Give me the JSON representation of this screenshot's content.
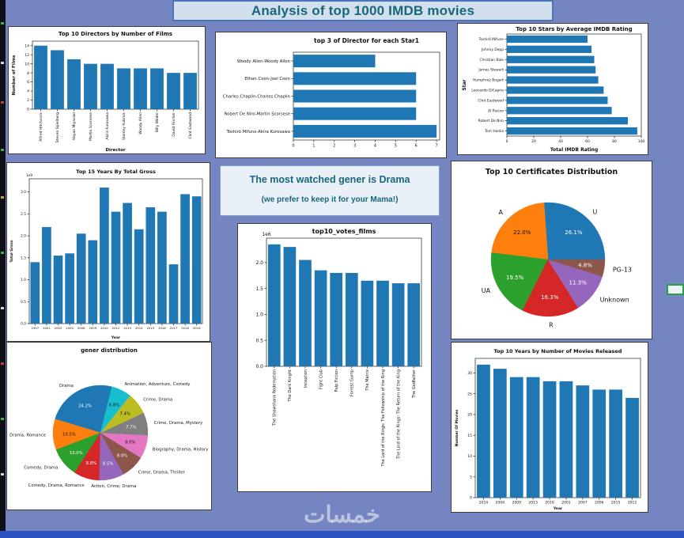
{
  "page": {
    "title": "Analysis of top 1000 IMDB movies",
    "watermark": "خمسات"
  },
  "note_box": {
    "line1": "The most watched gener is Drama",
    "line2": "(we prefer to keep it for your Mama!)"
  },
  "colors": {
    "background": "#7585c1",
    "panel": "#ffffff",
    "bar": "#1f77b4",
    "title_text": "#19677a",
    "taskbar": "#2d52c2",
    "selection_outline": "#25a244"
  },
  "chart_data": [
    {
      "id": "directors",
      "type": "bar",
      "title": "Top 10 Directors by Number of Films",
      "xlabel": "Director",
      "ylabel": "Number of Films",
      "categories": [
        "Alfred Hitchcock",
        "Steven Spielberg",
        "Hayao Miyazaki",
        "Martin Scorsese",
        "Akira Kurosawa",
        "Stanley Kubrick",
        "Woody Allen",
        "Billy Wilder",
        "David Fincher",
        "Clint Eastwood"
      ],
      "values": [
        14,
        13,
        11,
        10,
        10,
        9,
        9,
        9,
        8,
        8
      ],
      "ylim": [
        0,
        15
      ],
      "yticks": [
        "0",
        "2",
        "4",
        "6",
        "8",
        "10",
        "12",
        "14"
      ]
    },
    {
      "id": "star1",
      "type": "hbar",
      "title": "top 3 of Director for each Star1",
      "categories": [
        "Woody Allen-Woody Allen",
        "Ethan Coen-Joel Coen",
        "Charles Chaplin-Charles Chaplin",
        "Robert De Niro-Martin Scorsese",
        "Toshirô Mifune-Akira Kurosawa"
      ],
      "values": [
        4,
        6,
        6,
        6,
        7
      ],
      "xlim": [
        0,
        7.15
      ],
      "xticks": [
        "0",
        "1",
        "2",
        "3",
        "4",
        "5",
        "6",
        "7"
      ]
    },
    {
      "id": "stars",
      "type": "hbar",
      "title": "Top 10 Stars by Average IMDB Rating",
      "xlabel": "Total IMDB Rating",
      "ylabel": "Star",
      "categories": [
        "Toshirô Mifune",
        "Johnny Depp",
        "Christian Bale",
        "James Stewart",
        "Humphrey Bogart",
        "Leonardo DiCaprio",
        "Clint Eastwood",
        "Al Pacino",
        "Robert De Niro",
        "Tom Hanks"
      ],
      "values": [
        60,
        63,
        65,
        66,
        68,
        72,
        75,
        78,
        90,
        97
      ],
      "xlim": [
        0,
        100
      ],
      "xticks": [
        "0",
        "20",
        "40",
        "60",
        "80",
        "100"
      ]
    },
    {
      "id": "years_gross",
      "type": "bar",
      "title": "Top 15 Years By Total Gross",
      "xlabel": "Year",
      "ylabel": "Total Gross",
      "scale_label": "1e9",
      "categories": [
        "1997",
        "2001",
        "2003",
        "2004",
        "2008",
        "2009",
        "2010",
        "2012",
        "2013",
        "2014",
        "2015",
        "2016",
        "2017",
        "2018",
        "2019"
      ],
      "values": [
        1.4,
        2.2,
        1.55,
        1.6,
        2.05,
        1.9,
        3.1,
        2.55,
        2.75,
        2.15,
        2.65,
        2.55,
        1.35,
        2.95,
        2.9
      ],
      "ylim": [
        0,
        3.3
      ],
      "yticks": [
        "0.0",
        "0.5",
        "1.0",
        "1.5",
        "2.0",
        "2.5",
        "3.0"
      ]
    },
    {
      "id": "votes",
      "type": "bar",
      "title": "top10_votes_films",
      "scale_label": "1e6",
      "categories": [
        "The Shawshank Redemption",
        "The Dark Knight",
        "Inception",
        "Fight Club",
        "Pulp Fiction",
        "Forrest Gump",
        "The Matrix",
        "The Lord of the Rings: The Fellowship of the Ring",
        "The Lord of the Rings: The Return of the King",
        "The Godfather"
      ],
      "values": [
        2.35,
        2.3,
        2.05,
        1.85,
        1.8,
        1.8,
        1.65,
        1.65,
        1.6,
        1.6
      ],
      "ylim": [
        0,
        2.47
      ],
      "yticks": [
        "0.0",
        "0.5",
        "1.0",
        "1.5",
        "2.0"
      ]
    },
    {
      "id": "cert_pie",
      "type": "pie",
      "title": "Top 10 Certificates Distribution",
      "labels": [
        "U",
        "A",
        "UA",
        "R",
        "Unknown",
        "PG-13"
      ],
      "values": [
        26.1,
        22.0,
        19.5,
        16.3,
        11.3,
        4.8
      ],
      "colors": [
        "#1f77b4",
        "#ff7f0e",
        "#2ca02c",
        "#d62728",
        "#9467bd",
        "#8c564b"
      ],
      "start_angle": 0
    },
    {
      "id": "genre_pie",
      "type": "pie",
      "title": "gener distribution",
      "labels": [
        "Drama",
        "Drama, Romance",
        "Comedy, Drama",
        "Comedy, Drama, Romance",
        "Action, Crime, Drama",
        "Crime, Drama, Thriller",
        "Biography, Drama, History",
        "Crime, Drama, Mystery",
        "Crime, Drama",
        "Animation, Adventure, Comedy"
      ],
      "values": [
        24.2,
        10.5,
        10.0,
        8.8,
        8.5,
        8.0,
        8.0,
        7.7,
        7.4,
        6.8
      ],
      "colors": [
        "#1f77b4",
        "#ff7f0e",
        "#2ca02c",
        "#d62728",
        "#9467bd",
        "#8c564b",
        "#e377c2",
        "#7f7f7f",
        "#bcbd22",
        "#17becf"
      ],
      "start_angle": 76
    },
    {
      "id": "years_movies",
      "type": "bar",
      "title": "Top 10 Years by Number of Movies Released",
      "xlabel": "Year",
      "ylabel": "Number Of Movies",
      "categories": [
        "2014",
        "2004",
        "2009",
        "2013",
        "2016",
        "2001",
        "2007",
        "2006",
        "2015",
        "2012"
      ],
      "values": [
        32,
        31,
        29,
        29,
        28,
        28,
        27,
        26,
        26,
        24
      ],
      "ylim": [
        0,
        33.5
      ],
      "yticks": [
        "0",
        "5",
        "10",
        "15",
        "20",
        "25",
        "30"
      ]
    }
  ]
}
